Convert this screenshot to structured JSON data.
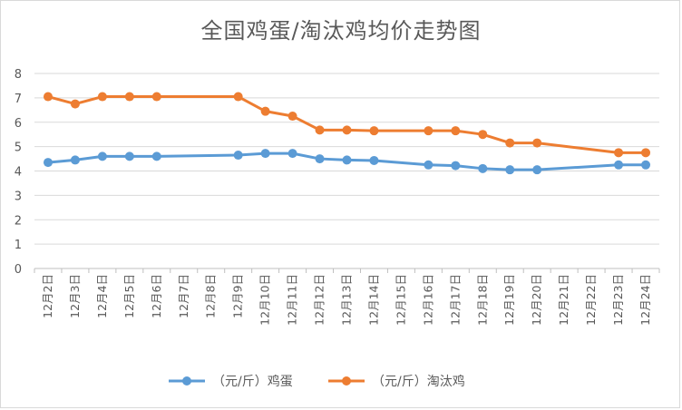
{
  "chart_data": {
    "type": "line",
    "title": "全国鸡蛋/淘汰鸡均价走势图",
    "xlabel": "",
    "ylabel": "",
    "ylim": [
      0,
      8
    ],
    "yticks": [
      "0",
      "1",
      "2",
      "3",
      "4",
      "5",
      "6",
      "7",
      "8"
    ],
    "grid": true,
    "legend_position": "bottom",
    "categories": [
      "12月2日",
      "12月3日",
      "12月4日",
      "12月5日",
      "12月6日",
      "12月7日",
      "12月8日",
      "12月9日",
      "12月10日",
      "12月11日",
      "12月12日",
      "12月13日",
      "12月14日",
      "12月15日",
      "12月16日",
      "12月17日",
      "12月18日",
      "12月19日",
      "12月20日",
      "12月21日",
      "12月22日",
      "12月23日",
      "12月24日"
    ],
    "series": [
      {
        "name": "（元/斤）鸡蛋",
        "color": "#5b9bd5",
        "values": [
          4.35,
          4.45,
          4.6,
          4.6,
          4.6,
          null,
          null,
          4.65,
          4.72,
          4.72,
          4.5,
          4.45,
          4.43,
          null,
          4.25,
          4.22,
          4.1,
          4.05,
          4.05,
          null,
          null,
          4.25,
          4.25
        ]
      },
      {
        "name": "（元/斤）淘汰鸡",
        "color": "#ed7d31",
        "values": [
          7.05,
          6.75,
          7.05,
          7.05,
          7.05,
          null,
          null,
          7.05,
          6.45,
          6.25,
          5.68,
          5.68,
          5.65,
          null,
          5.65,
          5.65,
          5.5,
          5.15,
          5.15,
          null,
          null,
          4.75,
          4.75
        ]
      }
    ]
  }
}
